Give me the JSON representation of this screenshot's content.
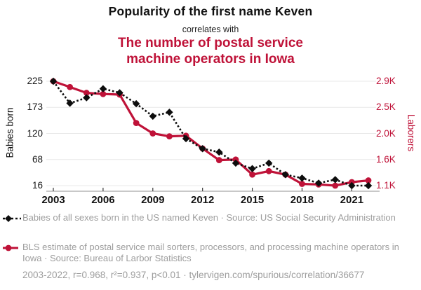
{
  "header": {
    "title": "Popularity of the first name Keven",
    "connector": "correlates with",
    "subtitle_line1": "The number of postal service",
    "subtitle_line2": "machine operators in Iowa"
  },
  "colors": {
    "accent_red": "#bf1238",
    "series_black": "#0d0d0d",
    "legend_gray": "#9d9d9d",
    "grid": "#e8e8e8",
    "axis": "#a6a6a6",
    "tick": "#3a3a3a"
  },
  "chart_data": {
    "type": "line",
    "title": "Popularity of the first name Keven correlates with The number of postal service machine operators in Iowa",
    "x": [
      2003,
      2004,
      2005,
      2006,
      2007,
      2008,
      2009,
      2010,
      2011,
      2012,
      2013,
      2014,
      2015,
      2016,
      2017,
      2018,
      2019,
      2020,
      2021,
      2022
    ],
    "x_ticks": [
      2003,
      2006,
      2009,
      2012,
      2015,
      2018,
      2021
    ],
    "x_tick_labels": [
      "2003",
      "2006",
      "2009",
      "2012",
      "2015",
      "2018",
      "2021"
    ],
    "grid": true,
    "legend_position": "bottom",
    "left_axis": {
      "label": "Babies born",
      "min": 16,
      "max": 225,
      "tick_labels": [
        "225",
        "173",
        "120",
        "68",
        "16"
      ]
    },
    "right_axis": {
      "label": "Laborers",
      "min": 1100,
      "max": 2900,
      "tick_labels": [
        "2.9K",
        "2.5K",
        "2.0K",
        "1.6K",
        "1.1K"
      ]
    },
    "series": [
      {
        "name": "Babies of all sexes born in the US named Keven",
        "axis": "left",
        "color": "#0d0d0d",
        "style": "dashed",
        "marker": "diamond",
        "values": [
          225,
          181,
          192,
          210,
          202,
          180,
          155,
          163,
          110,
          90,
          83,
          61,
          50,
          61,
          38,
          31,
          21,
          28,
          16,
          16
        ]
      },
      {
        "name": "Postal service mail sorters, processors, and processing machine operators in Iowa",
        "axis": "right",
        "color": "#bf1238",
        "style": "solid",
        "marker": "circle",
        "values": [
          2900,
          2800,
          2700,
          2680,
          2670,
          2180,
          2000,
          1950,
          1960,
          1740,
          1540,
          1550,
          1290,
          1350,
          1290,
          1130,
          1120,
          1100,
          1160,
          1190
        ]
      }
    ]
  },
  "legend": {
    "items": [
      {
        "marker": "black-diamond-dashed",
        "label": "Babies of all sexes born in the US named Keven · Source: US Social Security Administration"
      },
      {
        "marker": "red-circle-line",
        "label": "BLS estimate of postal service mail sorters, processors, and processing machine operators in Iowa · Source: Bureau of Larbor Statistics"
      }
    ]
  },
  "footer": {
    "text": "2003-2022, r=0.968, r²=0.937, p<0.01 · tylervigen.com/spurious/correlation/36677"
  }
}
